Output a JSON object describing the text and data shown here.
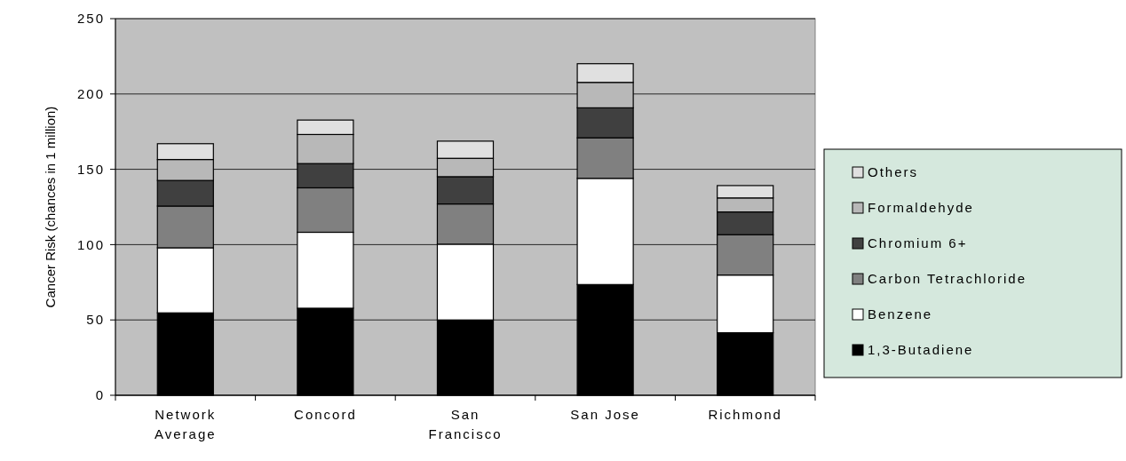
{
  "chart_data": {
    "type": "bar",
    "stacked": true,
    "ylabel": "Cancer Risk  (chances in 1 million)",
    "categories": [
      "Network Average",
      "Concord",
      "San Francisco",
      "San Jose",
      "Richmond"
    ],
    "series": [
      {
        "name": "1,3-Butadiene",
        "color": "#000000",
        "values": [
          54.7,
          57.8,
          50,
          73.5,
          41.5
        ]
      },
      {
        "name": "Benzene",
        "color": "#ffffff",
        "values": [
          43.2,
          50.4,
          50.3,
          70.5,
          38.3
        ]
      },
      {
        "name": "Carbon Tetrachloride",
        "color": "#808080",
        "values": [
          27.7,
          29.5,
          26.7,
          26.9,
          26.8
        ]
      },
      {
        "name": "Chromium 6+",
        "color": "#404040",
        "values": [
          17,
          16.1,
          18.1,
          19.9,
          15.1
        ]
      },
      {
        "name": "Formaldehyde",
        "color": "#b8b8b8",
        "values": [
          13.9,
          19.3,
          12.2,
          16.9,
          9.3
        ]
      },
      {
        "name": "Others",
        "color": "#e0e0e0",
        "values": [
          10.5,
          9.6,
          11.4,
          12.4,
          8.2
        ]
      }
    ],
    "ylim": [
      0,
      250
    ],
    "yticks": [
      0,
      50,
      100,
      150,
      200,
      250
    ],
    "grid": "y",
    "legend": "right"
  }
}
